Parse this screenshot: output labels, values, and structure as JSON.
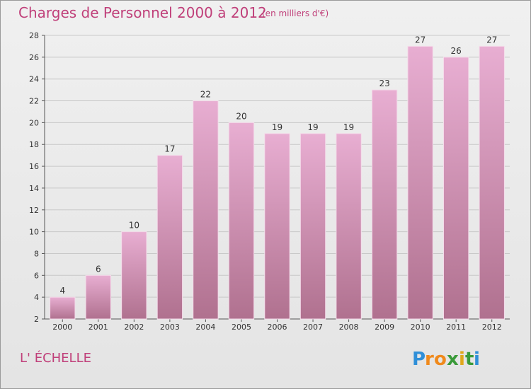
{
  "header": {
    "title": "Charges de Personnel 2000 à 2012",
    "subtitle": "(en milliers d'€)"
  },
  "footer": {
    "commune": "L' ÉCHELLE",
    "logo": "Proxiti"
  },
  "colors": {
    "bar_top": "#e8aed2",
    "bar_bottom": "#b0718f",
    "text_accent": "#c0407a"
  },
  "chart_data": {
    "type": "bar",
    "categories": [
      "2000",
      "2001",
      "2002",
      "2003",
      "2004",
      "2005",
      "2006",
      "2007",
      "2008",
      "2009",
      "2010",
      "2011",
      "2012"
    ],
    "values": [
      4,
      6,
      10,
      17,
      22,
      20,
      19,
      19,
      19,
      23,
      27,
      26,
      27
    ],
    "title": "Charges de Personnel 2000 à 2012",
    "xlabel": "",
    "ylabel": "",
    "ylim": [
      2,
      28
    ],
    "yticks": [
      2,
      4,
      6,
      8,
      10,
      12,
      14,
      16,
      18,
      20,
      22,
      24,
      26,
      28
    ],
    "grid": true,
    "data_labels": true
  }
}
